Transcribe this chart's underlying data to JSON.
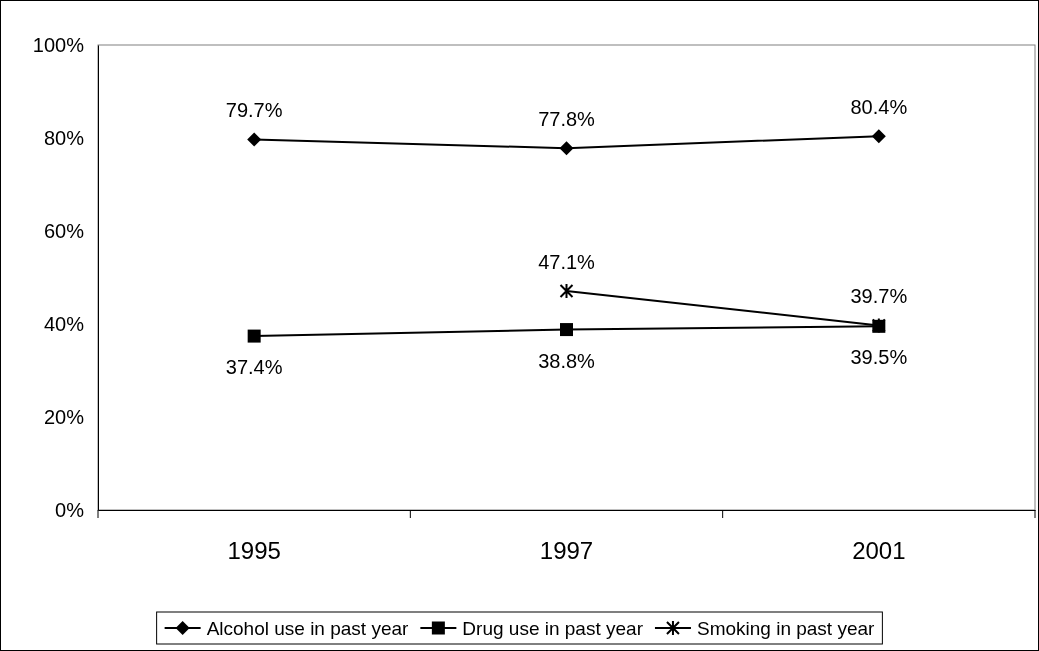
{
  "chart_data": {
    "type": "line",
    "categories": [
      "1995",
      "1997",
      "2001"
    ],
    "ylim": [
      0,
      100
    ],
    "yticks": [
      {
        "value": 0,
        "label": "0%"
      },
      {
        "value": 20,
        "label": "20%"
      },
      {
        "value": 40,
        "label": "40%"
      },
      {
        "value": 60,
        "label": "60%"
      },
      {
        "value": 80,
        "label": "80%"
      },
      {
        "value": 100,
        "label": "100%"
      }
    ],
    "grid": false,
    "legend": "bottom",
    "line_style": "solid",
    "series": [
      {
        "name": "Alcohol use in past year",
        "color": "#000000",
        "marker": "diamond",
        "values": [
          79.7,
          77.8,
          80.4
        ],
        "value_labels": [
          "79.7%",
          "77.8%",
          "80.4%"
        ]
      },
      {
        "name": "Drug use in past year",
        "color": "#000000",
        "marker": "square",
        "values": [
          37.4,
          38.8,
          39.5
        ],
        "value_labels": [
          "37.4%",
          "38.8%",
          "39.5%"
        ]
      },
      {
        "name": "Smoking in past year",
        "color": "#000000",
        "marker": "cross",
        "values": [
          null,
          47.1,
          39.7
        ],
        "value_labels": [
          null,
          "47.1%",
          "39.7%"
        ]
      }
    ]
  }
}
